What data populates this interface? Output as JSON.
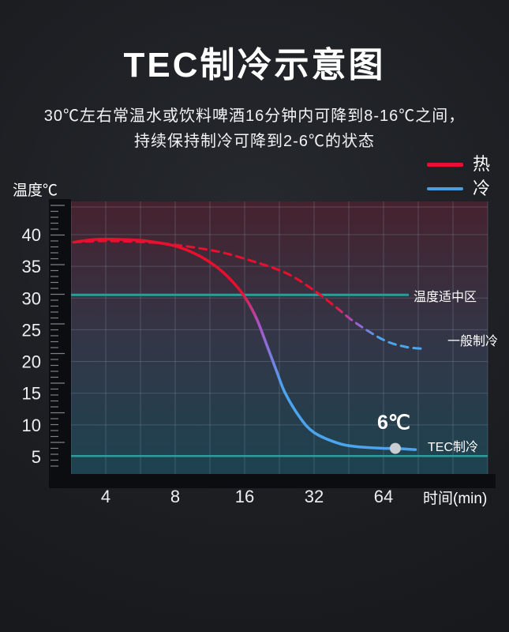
{
  "title": "TEC制冷示意图",
  "subtitle": {
    "line1": "30℃左右常温水或饮料啤酒16分钟内可降到8-16℃之间，",
    "line2": "持续保持制冷可降到2-6℃的状态"
  },
  "legend": {
    "hot_label": "热",
    "hot_color": "#e8102e",
    "cold_label": "冷",
    "cold_color": "#42a0e8"
  },
  "chart_data": {
    "type": "line",
    "x_scale": "log2",
    "grid": true,
    "x_axis": {
      "label": "时间(min)",
      "ticks": [
        4,
        8,
        16,
        32,
        64
      ]
    },
    "y_axis": {
      "label": "温度℃",
      "ticks": [
        40,
        35,
        30,
        25,
        20,
        15,
        10,
        5
      ],
      "range": [
        2,
        45
      ]
    },
    "series": [
      {
        "name": "TEC制冷",
        "style": "solid",
        "color_start": "#e8102e",
        "color_end": "#4da4ee",
        "points": [
          [
            2.9,
            38.8
          ],
          [
            3.5,
            39.2
          ],
          [
            4,
            39.3
          ],
          [
            5,
            39.2
          ],
          [
            6,
            39.0
          ],
          [
            8,
            38.2
          ],
          [
            10,
            36.8
          ],
          [
            12,
            35.0
          ],
          [
            14,
            32.8
          ],
          [
            16,
            30.2
          ],
          [
            18,
            26.8
          ],
          [
            20,
            22.5
          ],
          [
            22,
            18.5
          ],
          [
            24,
            15.0
          ],
          [
            28,
            11.0
          ],
          [
            32,
            8.8
          ],
          [
            40,
            7.2
          ],
          [
            48,
            6.6
          ],
          [
            64,
            6.3
          ],
          [
            72,
            6.3
          ],
          [
            88,
            6.1
          ]
        ]
      },
      {
        "name": "一般制冷",
        "style": "dashed",
        "color_start": "#e8102e",
        "color_end": "#4da4ee",
        "points": [
          [
            2.9,
            38.8
          ],
          [
            4,
            39.0
          ],
          [
            6,
            38.8
          ],
          [
            8,
            38.4
          ],
          [
            12,
            37.4
          ],
          [
            16,
            36.2
          ],
          [
            24,
            34.0
          ],
          [
            32,
            31.2
          ],
          [
            40,
            28.5
          ],
          [
            48,
            26.2
          ],
          [
            64,
            23.4
          ],
          [
            80,
            22.3
          ],
          [
            96,
            22.0
          ]
        ]
      }
    ],
    "reference_lines": [
      {
        "label": "温度适中区",
        "temp": 30.5,
        "color": "#2f9b9b"
      },
      {
        "label": "",
        "temp": 5.1,
        "color": "#2f9b9b"
      }
    ],
    "marker": {
      "label": "6℃",
      "point": [
        72,
        6.3
      ],
      "color": "#c9ccd1"
    },
    "transition_color": "#a855cc"
  }
}
